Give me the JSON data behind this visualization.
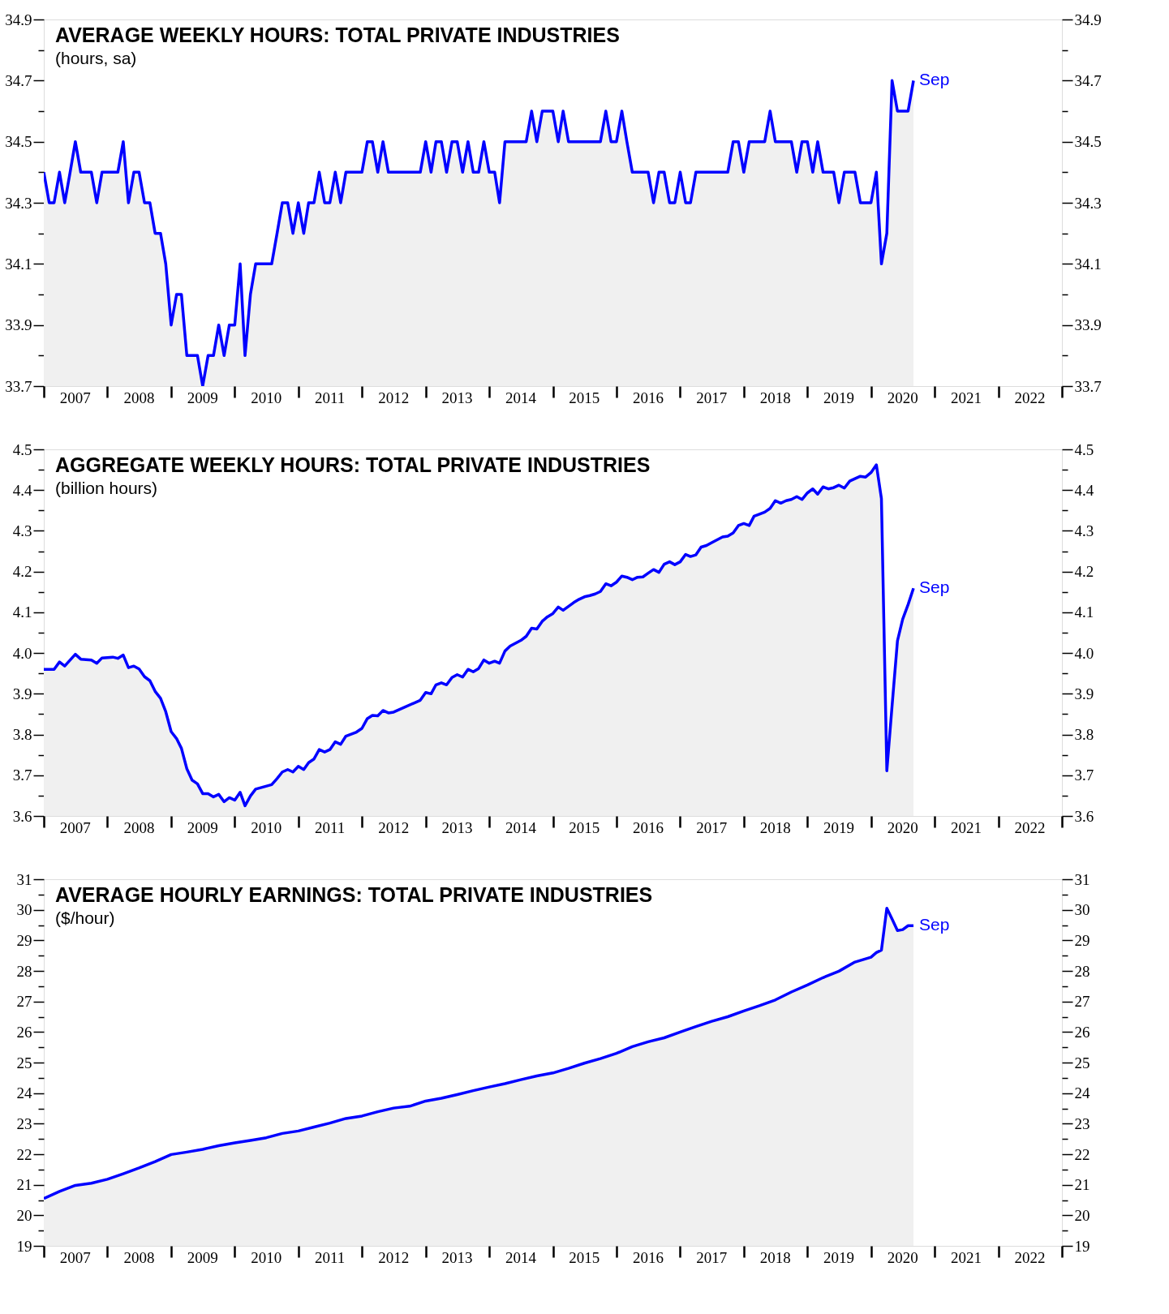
{
  "chart_data": [
    {
      "type": "area",
      "title": "AVERAGE WEEKLY HOURS: TOTAL PRIVATE INDUSTRIES",
      "subtitle": "(hours, sa)",
      "x": [
        "2007-01",
        "2007-02",
        "2007-03",
        "2007-04",
        "2007-05",
        "2007-06",
        "2007-07",
        "2007-08",
        "2007-09",
        "2007-10",
        "2007-11",
        "2007-12",
        "2008-01",
        "2008-02",
        "2008-03",
        "2008-04",
        "2008-05",
        "2008-06",
        "2008-07",
        "2008-08",
        "2008-09",
        "2008-10",
        "2008-11",
        "2008-12",
        "2009-01",
        "2009-02",
        "2009-03",
        "2009-04",
        "2009-05",
        "2009-06",
        "2009-07",
        "2009-08",
        "2009-09",
        "2009-10",
        "2009-11",
        "2009-12",
        "2010-01",
        "2010-02",
        "2010-03",
        "2010-04",
        "2010-05",
        "2010-06",
        "2010-07",
        "2010-08",
        "2010-09",
        "2010-10",
        "2010-11",
        "2010-12",
        "2011-01",
        "2011-02",
        "2011-03",
        "2011-04",
        "2011-05",
        "2011-06",
        "2011-07",
        "2011-08",
        "2011-09",
        "2011-10",
        "2011-11",
        "2011-12",
        "2012-01",
        "2012-02",
        "2012-03",
        "2012-04",
        "2012-05",
        "2012-06",
        "2012-07",
        "2012-08",
        "2012-09",
        "2012-10",
        "2012-11",
        "2012-12",
        "2013-01",
        "2013-02",
        "2013-03",
        "2013-04",
        "2013-05",
        "2013-06",
        "2013-07",
        "2013-08",
        "2013-09",
        "2013-10",
        "2013-11",
        "2013-12",
        "2014-01",
        "2014-02",
        "2014-03",
        "2014-04",
        "2014-05",
        "2014-06",
        "2014-07",
        "2014-08",
        "2014-09",
        "2014-10",
        "2014-11",
        "2014-12",
        "2015-01",
        "2015-02",
        "2015-03",
        "2015-04",
        "2015-05",
        "2015-06",
        "2015-07",
        "2015-08",
        "2015-09",
        "2015-10",
        "2015-11",
        "2015-12",
        "2016-01",
        "2016-02",
        "2016-03",
        "2016-04",
        "2016-05",
        "2016-06",
        "2016-07",
        "2016-08",
        "2016-09",
        "2016-10",
        "2016-11",
        "2016-12",
        "2017-01",
        "2017-02",
        "2017-03",
        "2017-04",
        "2017-05",
        "2017-06",
        "2017-07",
        "2017-08",
        "2017-09",
        "2017-10",
        "2017-11",
        "2017-12",
        "2018-01",
        "2018-02",
        "2018-03",
        "2018-04",
        "2018-05",
        "2018-06",
        "2018-07",
        "2018-08",
        "2018-09",
        "2018-10",
        "2018-11",
        "2018-12",
        "2019-01",
        "2019-02",
        "2019-03",
        "2019-04",
        "2019-05",
        "2019-06",
        "2019-07",
        "2019-08",
        "2019-09",
        "2019-10",
        "2019-11",
        "2019-12",
        "2020-01",
        "2020-02",
        "2020-03",
        "2020-04",
        "2020-05",
        "2020-06",
        "2020-07",
        "2020-08",
        "2020-09"
      ],
      "series": [
        {
          "color": "#0000ff",
          "values": [
            34.4,
            34.3,
            34.3,
            34.4,
            34.3,
            34.4,
            34.5,
            34.4,
            34.4,
            34.4,
            34.3,
            34.4,
            34.4,
            34.4,
            34.4,
            34.5,
            34.3,
            34.4,
            34.4,
            34.3,
            34.3,
            34.2,
            34.2,
            34.1,
            33.9,
            34.0,
            34.0,
            33.8,
            33.8,
            33.8,
            33.7,
            33.8,
            33.8,
            33.9,
            33.8,
            33.9,
            33.9,
            34.1,
            33.8,
            34.0,
            34.1,
            34.1,
            34.1,
            34.1,
            34.2,
            34.3,
            34.3,
            34.2,
            34.3,
            34.2,
            34.3,
            34.3,
            34.4,
            34.3,
            34.3,
            34.4,
            34.3,
            34.4,
            34.4,
            34.4,
            34.4,
            34.5,
            34.5,
            34.4,
            34.5,
            34.4,
            34.4,
            34.4,
            34.4,
            34.4,
            34.4,
            34.4,
            34.5,
            34.4,
            34.5,
            34.5,
            34.4,
            34.5,
            34.5,
            34.4,
            34.5,
            34.4,
            34.4,
            34.5,
            34.4,
            34.4,
            34.3,
            34.5,
            34.5,
            34.5,
            34.5,
            34.5,
            34.6,
            34.5,
            34.6,
            34.6,
            34.6,
            34.5,
            34.6,
            34.5,
            34.5,
            34.5,
            34.5,
            34.5,
            34.5,
            34.5,
            34.6,
            34.5,
            34.5,
            34.6,
            34.5,
            34.4,
            34.4,
            34.4,
            34.4,
            34.3,
            34.4,
            34.4,
            34.3,
            34.3,
            34.4,
            34.3,
            34.3,
            34.4,
            34.4,
            34.4,
            34.4,
            34.4,
            34.4,
            34.4,
            34.5,
            34.5,
            34.4,
            34.5,
            34.5,
            34.5,
            34.5,
            34.6,
            34.5,
            34.5,
            34.5,
            34.5,
            34.4,
            34.5,
            34.5,
            34.4,
            34.5,
            34.4,
            34.4,
            34.4,
            34.3,
            34.4,
            34.4,
            34.4,
            34.3,
            34.3,
            34.3,
            34.4,
            34.1,
            34.2,
            34.7,
            34.6,
            34.6,
            34.6,
            34.7
          ]
        }
      ],
      "xlim": [
        "2007-01",
        "2023-01"
      ],
      "xticks": [
        {
          "value": "2007-01",
          "label": null
        },
        {
          "value": "2007-07",
          "label": "2007"
        },
        {
          "value": "2008-01",
          "label": null
        },
        {
          "value": "2008-07",
          "label": "2008"
        },
        {
          "value": "2009-01",
          "label": null
        },
        {
          "value": "2009-07",
          "label": "2009"
        },
        {
          "value": "2010-01",
          "label": null
        },
        {
          "value": "2010-07",
          "label": "2010"
        },
        {
          "value": "2011-01",
          "label": null
        },
        {
          "value": "2011-07",
          "label": "2011"
        },
        {
          "value": "2012-01",
          "label": null
        },
        {
          "value": "2012-07",
          "label": "2012"
        },
        {
          "value": "2013-01",
          "label": null
        },
        {
          "value": "2013-07",
          "label": "2013"
        },
        {
          "value": "2014-01",
          "label": null
        },
        {
          "value": "2014-07",
          "label": "2014"
        },
        {
          "value": "2015-01",
          "label": null
        },
        {
          "value": "2015-07",
          "label": "2015"
        },
        {
          "value": "2016-01",
          "label": null
        },
        {
          "value": "2016-07",
          "label": "2016"
        },
        {
          "value": "2017-01",
          "label": null
        },
        {
          "value": "2017-07",
          "label": "2017"
        },
        {
          "value": "2018-01",
          "label": null
        },
        {
          "value": "2018-07",
          "label": "2018"
        },
        {
          "value": "2019-01",
          "label": null
        },
        {
          "value": "2019-07",
          "label": "2019"
        },
        {
          "value": "2020-01",
          "label": null
        },
        {
          "value": "2020-07",
          "label": "2020"
        },
        {
          "value": "2021-01",
          "label": null
        },
        {
          "value": "2021-07",
          "label": "2021"
        },
        {
          "value": "2022-01",
          "label": null
        },
        {
          "value": "2022-07",
          "label": "2022"
        },
        {
          "value": "2023-01",
          "label": null
        }
      ],
      "ylim": [
        33.7,
        34.9
      ],
      "yticks": [
        33.7,
        {
          "value": 33.8,
          "label": null
        },
        33.9,
        {
          "value": 34.0,
          "label": null
        },
        34.1,
        {
          "value": 34.2,
          "label": null
        },
        34.3,
        {
          "value": 34.4,
          "label": null
        },
        34.5,
        {
          "value": 34.6,
          "label": null
        },
        34.7,
        {
          "value": 34.8,
          "label": null
        },
        34.9
      ],
      "y2lim": [
        33.7,
        34.9
      ],
      "y2ticks": [
        33.7,
        {
          "value": 33.8,
          "label": null
        },
        33.9,
        {
          "value": 34.0,
          "label": null
        },
        34.1,
        {
          "value": 34.2,
          "label": null
        },
        34.3,
        {
          "value": 34.4,
          "label": null
        },
        34.5,
        {
          "value": 34.6,
          "label": null
        },
        34.7,
        {
          "value": 34.8,
          "label": null
        },
        34.9
      ],
      "annotations": [
        {
          "text": "Sep",
          "x": "2020-09",
          "y": 34.7
        }
      ],
      "grid": false
    },
    {
      "type": "area",
      "title": "AGGREGATE WEEKLY HOURS: TOTAL PRIVATE INDUSTRIES",
      "subtitle": "(billion hours)",
      "x": [
        "2007-01",
        "2007-03",
        "2007-04",
        "2007-05",
        "2007-07",
        "2007-08",
        "2007-10",
        "2007-11",
        "2007-12",
        "2008-02",
        "2008-03",
        "2008-04",
        "2008-05",
        "2008-06",
        "2008-07",
        "2008-08",
        "2008-09",
        "2008-10",
        "2008-11",
        "2008-12",
        "2009-01",
        "2009-02",
        "2009-03",
        "2009-04",
        "2009-05",
        "2009-06",
        "2009-07",
        "2009-08",
        "2009-09",
        "2009-10",
        "2009-11",
        "2009-12",
        "2010-01",
        "2010-02",
        "2010-03",
        "2010-04",
        "2010-05",
        "2010-08",
        "2010-09",
        "2010-10",
        "2010-11",
        "2010-12",
        "2011-01",
        "2011-02",
        "2011-03",
        "2011-04",
        "2011-05",
        "2011-06",
        "2011-07",
        "2011-08",
        "2011-09",
        "2011-10",
        "2011-12",
        "2012-01",
        "2012-02",
        "2012-03",
        "2012-04",
        "2012-05",
        "2012-06",
        "2012-07",
        "2012-12",
        "2013-01",
        "2013-02",
        "2013-03",
        "2013-04",
        "2013-05",
        "2013-06",
        "2013-07",
        "2013-08",
        "2013-09",
        "2013-10",
        "2013-11",
        "2013-12",
        "2014-01",
        "2014-02",
        "2014-03",
        "2014-04",
        "2014-05",
        "2014-07",
        "2014-08",
        "2014-09",
        "2014-10",
        "2014-11",
        "2014-12",
        "2015-01",
        "2015-02",
        "2015-03",
        "2015-05",
        "2015-06",
        "2015-07",
        "2015-08",
        "2015-09",
        "2015-10",
        "2015-11",
        "2015-12",
        "2016-01",
        "2016-02",
        "2016-03",
        "2016-04",
        "2016-05",
        "2016-06",
        "2016-07",
        "2016-08",
        "2016-09",
        "2016-10",
        "2016-11",
        "2016-12",
        "2017-01",
        "2017-02",
        "2017-03",
        "2017-04",
        "2017-05",
        "2017-06",
        "2017-07",
        "2017-08",
        "2017-09",
        "2017-10",
        "2017-11",
        "2017-12",
        "2018-01",
        "2018-02",
        "2018-03",
        "2018-04",
        "2018-05",
        "2018-06",
        "2018-07",
        "2018-08",
        "2018-09",
        "2018-10",
        "2018-11",
        "2018-12",
        "2019-01",
        "2019-02",
        "2019-03",
        "2019-04",
        "2019-05",
        "2019-06",
        "2019-07",
        "2019-08",
        "2019-09",
        "2019-10",
        "2019-11",
        "2019-12",
        "2020-01",
        "2020-02",
        "2020-03",
        "2020-04",
        "2020-05",
        "2020-06",
        "2020-07",
        "2020-08",
        "2020-09"
      ],
      "series": [
        {
          "color": "#0000ff",
          "values": [
            3.96,
            3.96,
            3.978,
            3.968,
            3.997,
            3.985,
            3.983,
            3.975,
            3.988,
            3.99,
            3.987,
            3.995,
            3.964,
            3.968,
            3.961,
            3.942,
            3.932,
            3.906,
            3.889,
            3.856,
            3.807,
            3.79,
            3.766,
            3.716,
            3.688,
            3.679,
            3.655,
            3.655,
            3.647,
            3.653,
            3.635,
            3.645,
            3.639,
            3.658,
            3.625,
            3.649,
            3.666,
            3.677,
            3.692,
            3.708,
            3.714,
            3.708,
            3.722,
            3.714,
            3.731,
            3.74,
            3.763,
            3.757,
            3.763,
            3.782,
            3.776,
            3.796,
            3.806,
            3.815,
            3.839,
            3.847,
            3.846,
            3.859,
            3.853,
            3.855,
            3.884,
            3.903,
            3.9,
            3.922,
            3.927,
            3.922,
            3.94,
            3.947,
            3.941,
            3.96,
            3.954,
            3.962,
            3.983,
            3.975,
            3.98,
            3.975,
            4.005,
            4.017,
            4.031,
            4.041,
            4.061,
            4.059,
            4.078,
            4.089,
            4.097,
            4.113,
            4.105,
            4.124,
            4.132,
            4.138,
            4.141,
            4.145,
            4.151,
            4.17,
            4.165,
            4.174,
            4.189,
            4.186,
            4.18,
            4.186,
            4.187,
            4.196,
            4.205,
            4.198,
            4.218,
            4.224,
            4.217,
            4.224,
            4.242,
            4.237,
            4.241,
            4.26,
            4.264,
            4.271,
            4.278,
            4.285,
            4.287,
            4.295,
            4.313,
            4.318,
            4.313,
            4.336,
            4.341,
            4.346,
            4.355,
            4.374,
            4.368,
            4.374,
            4.377,
            4.384,
            4.377,
            4.393,
            4.403,
            4.39,
            4.408,
            4.403,
            4.406,
            4.412,
            4.405,
            4.422,
            4.428,
            4.434,
            4.432,
            4.443,
            4.462,
            4.379,
            3.711,
            3.87,
            4.03,
            4.083,
            4.119,
            4.159
          ]
        }
      ],
      "xlim": [
        "2007-01",
        "2023-01"
      ],
      "xticks": [
        {
          "value": "2007-01",
          "label": null
        },
        {
          "value": "2007-07",
          "label": "2007"
        },
        {
          "value": "2008-01",
          "label": null
        },
        {
          "value": "2008-07",
          "label": "2008"
        },
        {
          "value": "2009-01",
          "label": null
        },
        {
          "value": "2009-07",
          "label": "2009"
        },
        {
          "value": "2010-01",
          "label": null
        },
        {
          "value": "2010-07",
          "label": "2010"
        },
        {
          "value": "2011-01",
          "label": null
        },
        {
          "value": "2011-07",
          "label": "2011"
        },
        {
          "value": "2012-01",
          "label": null
        },
        {
          "value": "2012-07",
          "label": "2012"
        },
        {
          "value": "2013-01",
          "label": null
        },
        {
          "value": "2013-07",
          "label": "2013"
        },
        {
          "value": "2014-01",
          "label": null
        },
        {
          "value": "2014-07",
          "label": "2014"
        },
        {
          "value": "2015-01",
          "label": null
        },
        {
          "value": "2015-07",
          "label": "2015"
        },
        {
          "value": "2016-01",
          "label": null
        },
        {
          "value": "2016-07",
          "label": "2016"
        },
        {
          "value": "2017-01",
          "label": null
        },
        {
          "value": "2017-07",
          "label": "2017"
        },
        {
          "value": "2018-01",
          "label": null
        },
        {
          "value": "2018-07",
          "label": "2018"
        },
        {
          "value": "2019-01",
          "label": null
        },
        {
          "value": "2019-07",
          "label": "2019"
        },
        {
          "value": "2020-01",
          "label": null
        },
        {
          "value": "2020-07",
          "label": "2020"
        },
        {
          "value": "2021-01",
          "label": null
        },
        {
          "value": "2021-07",
          "label": "2021"
        },
        {
          "value": "2022-01",
          "label": null
        },
        {
          "value": "2022-07",
          "label": "2022"
        },
        {
          "value": "2023-01",
          "label": null
        }
      ],
      "ylim": [
        3.6,
        4.5
      ],
      "yticks": [
        3.6,
        {
          "value": 3.65,
          "label": null
        },
        3.7,
        {
          "value": 3.75,
          "label": null
        },
        3.8,
        {
          "value": 3.85,
          "label": null
        },
        3.9,
        {
          "value": 3.95,
          "label": null
        },
        {
          "value": 4,
          "label": "4.0"
        },
        {
          "value": 4.05,
          "label": null
        },
        4.1,
        {
          "value": 4.15,
          "label": null
        },
        4.2,
        {
          "value": 4.25,
          "label": null
        },
        4.3,
        {
          "value": 4.35,
          "label": null
        },
        4.4,
        {
          "value": 4.45,
          "label": null
        },
        4.5
      ],
      "y2lim": [
        3.6,
        4.5
      ],
      "y2ticks": [
        3.6,
        {
          "value": 3.65,
          "label": null
        },
        3.7,
        {
          "value": 3.75,
          "label": null
        },
        3.8,
        {
          "value": 3.85,
          "label": null
        },
        3.9,
        {
          "value": 3.95,
          "label": null
        },
        {
          "value": 4,
          "label": "4.0"
        },
        {
          "value": 4.05,
          "label": null
        },
        4.1,
        {
          "value": 4.15,
          "label": null
        },
        4.2,
        {
          "value": 4.25,
          "label": null
        },
        4.3,
        {
          "value": 4.35,
          "label": null
        },
        4.4,
        {
          "value": 4.45,
          "label": null
        },
        4.5
      ],
      "annotations": [
        {
          "text": "Sep",
          "x": "2020-09",
          "y": 4.159
        }
      ],
      "grid": false
    },
    {
      "type": "area",
      "title": "AVERAGE HOURLY EARNINGS: TOTAL PRIVATE INDUSTRIES",
      "subtitle": "($/hour)",
      "x": [
        "2007-01",
        "2007-04",
        "2007-07",
        "2007-10",
        "2008-01",
        "2008-04",
        "2008-07",
        "2008-10",
        "2009-01",
        "2009-04",
        "2009-07",
        "2009-10",
        "2010-01",
        "2010-04",
        "2010-07",
        "2010-10",
        "2011-01",
        "2011-04",
        "2011-07",
        "2011-10",
        "2012-01",
        "2012-04",
        "2012-07",
        "2012-10",
        "2013-01",
        "2013-04",
        "2013-07",
        "2013-10",
        "2014-01",
        "2014-04",
        "2014-07",
        "2014-10",
        "2015-01",
        "2015-04",
        "2015-07",
        "2015-10",
        "2016-01",
        "2016-04",
        "2016-07",
        "2016-10",
        "2017-01",
        "2017-04",
        "2017-07",
        "2017-10",
        "2018-01",
        "2018-04",
        "2018-07",
        "2018-10",
        "2019-01",
        "2019-04",
        "2019-07",
        "2019-10",
        "2020-01",
        "2020-02",
        "2020-03",
        "2020-04",
        "2020-05",
        "2020-06",
        "2020-07",
        "2020-08",
        "2020-09"
      ],
      "series": [
        {
          "color": "#0000ff",
          "values": [
            20.55,
            20.78,
            20.98,
            21.05,
            21.18,
            21.36,
            21.55,
            21.76,
            21.99,
            22.07,
            22.16,
            22.28,
            22.37,
            22.45,
            22.54,
            22.68,
            22.76,
            22.89,
            23.02,
            23.17,
            23.25,
            23.39,
            23.51,
            23.57,
            23.74,
            23.83,
            23.95,
            24.08,
            24.2,
            24.31,
            24.44,
            24.56,
            24.66,
            24.81,
            24.98,
            25.13,
            25.3,
            25.52,
            25.68,
            25.81,
            26.0,
            26.18,
            26.35,
            26.5,
            26.69,
            26.86,
            27.05,
            27.31,
            27.54,
            27.78,
            27.99,
            28.29,
            28.45,
            28.6,
            28.68,
            30.05,
            29.7,
            29.32,
            29.35,
            29.48,
            29.48
          ]
        }
      ],
      "xlim": [
        "2007-01",
        "2023-01"
      ],
      "xticks": [
        {
          "value": "2007-01",
          "label": null
        },
        {
          "value": "2007-07",
          "label": "2007"
        },
        {
          "value": "2008-01",
          "label": null
        },
        {
          "value": "2008-07",
          "label": "2008"
        },
        {
          "value": "2009-01",
          "label": null
        },
        {
          "value": "2009-07",
          "label": "2009"
        },
        {
          "value": "2010-01",
          "label": null
        },
        {
          "value": "2010-07",
          "label": "2010"
        },
        {
          "value": "2011-01",
          "label": null
        },
        {
          "value": "2011-07",
          "label": "2011"
        },
        {
          "value": "2012-01",
          "label": null
        },
        {
          "value": "2012-07",
          "label": "2012"
        },
        {
          "value": "2013-01",
          "label": null
        },
        {
          "value": "2013-07",
          "label": "2013"
        },
        {
          "value": "2014-01",
          "label": null
        },
        {
          "value": "2014-07",
          "label": "2014"
        },
        {
          "value": "2015-01",
          "label": null
        },
        {
          "value": "2015-07",
          "label": "2015"
        },
        {
          "value": "2016-01",
          "label": null
        },
        {
          "value": "2016-07",
          "label": "2016"
        },
        {
          "value": "2017-01",
          "label": null
        },
        {
          "value": "2017-07",
          "label": "2017"
        },
        {
          "value": "2018-01",
          "label": null
        },
        {
          "value": "2018-07",
          "label": "2018"
        },
        {
          "value": "2019-01",
          "label": null
        },
        {
          "value": "2019-07",
          "label": "2019"
        },
        {
          "value": "2020-01",
          "label": null
        },
        {
          "value": "2020-07",
          "label": "2020"
        },
        {
          "value": "2021-01",
          "label": null
        },
        {
          "value": "2021-07",
          "label": "2021"
        },
        {
          "value": "2022-01",
          "label": null
        },
        {
          "value": "2022-07",
          "label": "2022"
        },
        {
          "value": "2023-01",
          "label": null
        }
      ],
      "ylim": [
        19,
        31
      ],
      "yticks": [
        19,
        {
          "value": 19.5,
          "label": null
        },
        20,
        {
          "value": 20.5,
          "label": null
        },
        21,
        {
          "value": 21.5,
          "label": null
        },
        22,
        {
          "value": 22.5,
          "label": null
        },
        23,
        {
          "value": 23.5,
          "label": null
        },
        24,
        {
          "value": 24.5,
          "label": null
        },
        25,
        {
          "value": 25.5,
          "label": null
        },
        26,
        {
          "value": 26.5,
          "label": null
        },
        27,
        {
          "value": 27.5,
          "label": null
        },
        28,
        {
          "value": 28.5,
          "label": null
        },
        29,
        {
          "value": 29.5,
          "label": null
        },
        30,
        {
          "value": 30.5,
          "label": null
        },
        31
      ],
      "y2lim": [
        19,
        31
      ],
      "y2ticks": [
        19,
        {
          "value": 19.5,
          "label": null
        },
        20,
        {
          "value": 20.5,
          "label": null
        },
        21,
        {
          "value": 21.5,
          "label": null
        },
        22,
        {
          "value": 22.5,
          "label": null
        },
        23,
        {
          "value": 23.5,
          "label": null
        },
        24,
        {
          "value": 24.5,
          "label": null
        },
        25,
        {
          "value": 25.5,
          "label": null
        },
        26,
        {
          "value": 26.5,
          "label": null
        },
        27,
        {
          "value": 27.5,
          "label": null
        },
        28,
        {
          "value": 28.5,
          "label": null
        },
        29,
        {
          "value": 29.5,
          "label": null
        },
        30,
        {
          "value": 30.5,
          "label": null
        },
        31
      ],
      "annotations": [
        {
          "text": "Sep",
          "x": "2020-09",
          "y": 29.48
        }
      ],
      "grid": false
    }
  ]
}
